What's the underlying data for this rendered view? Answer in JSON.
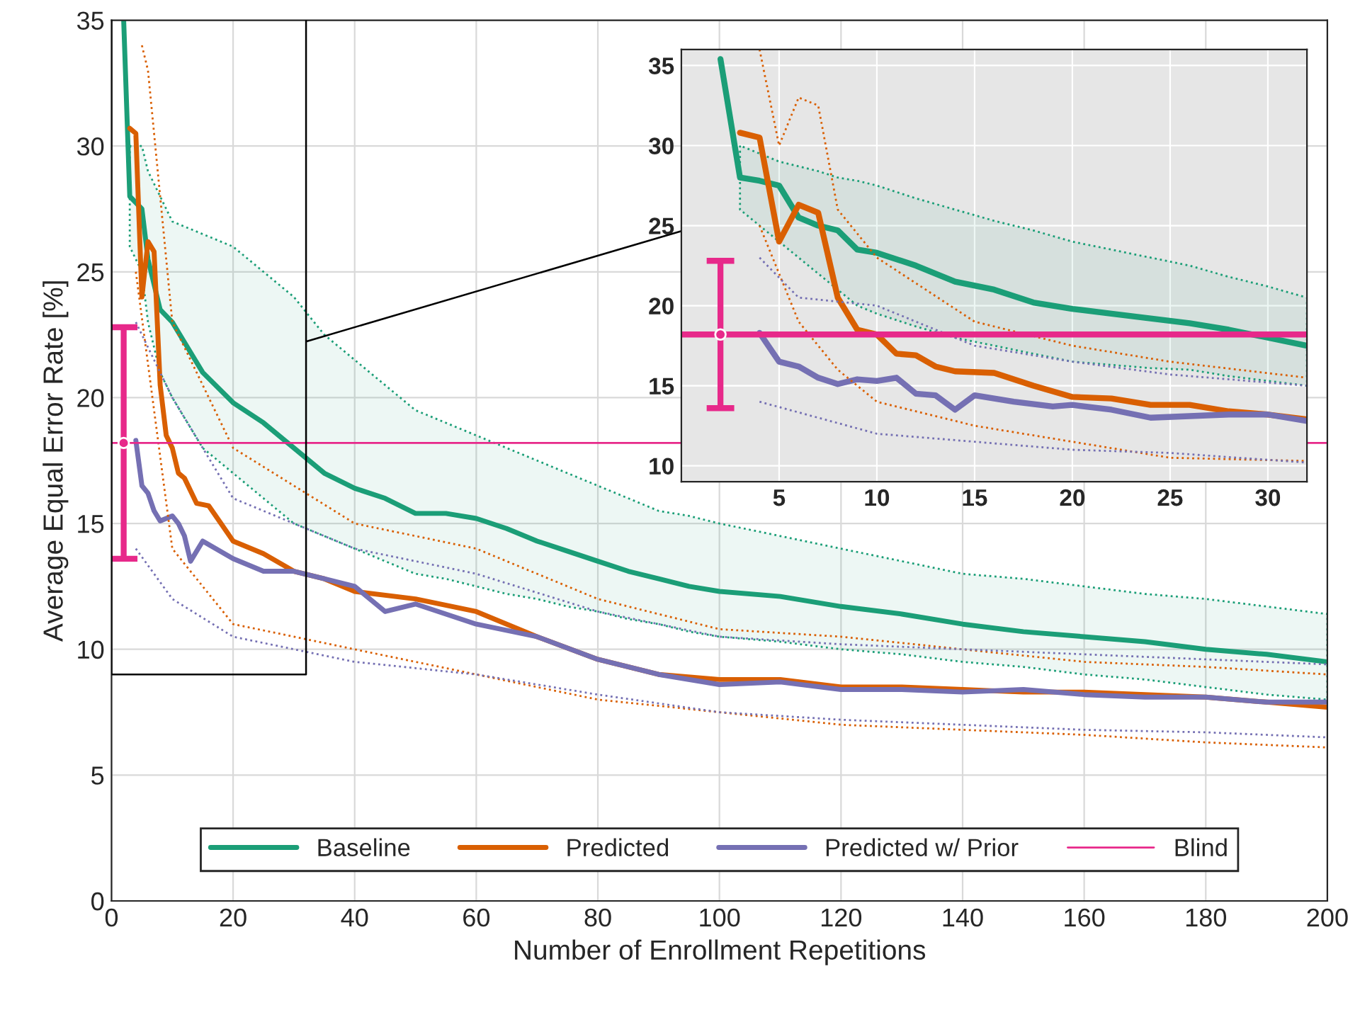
{
  "chart_data": [
    {
      "type": "line",
      "xlabel": "Number of Enrollment Repetitions",
      "ylabel": "Average Equal Error Rate [%]",
      "xlim": [
        0,
        200
      ],
      "ylim": [
        0,
        35
      ],
      "xticks": [
        0,
        20,
        40,
        60,
        80,
        100,
        120,
        140,
        160,
        180,
        200
      ],
      "yticks": [
        0,
        5,
        10,
        15,
        20,
        25,
        30,
        35
      ],
      "grid": true,
      "legend": "bottom",
      "series": [
        {
          "name": "Baseline",
          "color": "#1b9e77",
          "x": [
            2,
            3,
            5,
            6,
            8,
            10,
            15,
            20,
            25,
            30,
            35,
            40,
            45,
            50,
            55,
            60,
            65,
            70,
            75,
            80,
            85,
            90,
            95,
            100,
            110,
            120,
            130,
            140,
            150,
            160,
            170,
            180,
            190,
            200
          ],
          "values": [
            35,
            28,
            27.5,
            25.5,
            23.5,
            23,
            21,
            19.8,
            19,
            18,
            17,
            16.4,
            16,
            15.4,
            15.4,
            15.2,
            14.8,
            14.3,
            13.9,
            13.5,
            13.1,
            12.8,
            12.5,
            12.3,
            12.1,
            11.7,
            11.4,
            11,
            10.7,
            10.5,
            10.3,
            10,
            9.8,
            9.5
          ],
          "lower": [
            null,
            26,
            25,
            23,
            21,
            20,
            18,
            17,
            16,
            15,
            14.5,
            14,
            13.5,
            13,
            12.8,
            12.5,
            12.2,
            12,
            11.7,
            11.5,
            11.2,
            11,
            10.7,
            10.5,
            10.3,
            10,
            9.8,
            9.5,
            9.3,
            9,
            8.8,
            8.5,
            8.2,
            8
          ],
          "upper": [
            null,
            30,
            30,
            29,
            28,
            27,
            26.5,
            26,
            25,
            24,
            22.5,
            21.5,
            20.5,
            19.5,
            19,
            18.5,
            18,
            17.5,
            17,
            16.5,
            16,
            15.5,
            15.3,
            15,
            14.5,
            14,
            13.5,
            13,
            12.8,
            12.5,
            12.2,
            12,
            11.7,
            11.4
          ]
        },
        {
          "name": "Predicted",
          "color": "#d95f02",
          "x": [
            3,
            4,
            5,
            6,
            7,
            8,
            9,
            10,
            11,
            12,
            14,
            16,
            18,
            20,
            25,
            30,
            35,
            40,
            50,
            60,
            70,
            80,
            90,
            100,
            110,
            120,
            130,
            140,
            150,
            160,
            170,
            180,
            190,
            200
          ],
          "values": [
            30.7,
            30.5,
            24,
            26.2,
            25.8,
            20.5,
            18.5,
            18,
            17,
            16.8,
            15.8,
            15.7,
            15,
            14.3,
            13.8,
            13.1,
            12.8,
            12.3,
            12,
            11.5,
            10.5,
            9.6,
            9,
            8.8,
            8.8,
            8.5,
            8.5,
            8.4,
            8.3,
            8.3,
            8.2,
            8.1,
            7.9,
            7.7
          ]
        },
        {
          "name": "Predicted w/ Prior",
          "color": "#7570b3",
          "x": [
            4,
            5,
            6,
            7,
            8,
            10,
            11,
            12,
            13,
            15,
            20,
            25,
            30,
            35,
            40,
            45,
            50,
            60,
            70,
            80,
            90,
            100,
            110,
            120,
            130,
            140,
            150,
            160,
            170,
            180,
            190,
            200
          ],
          "values": [
            18.3,
            16.5,
            16.2,
            15.5,
            15.1,
            15.3,
            15,
            14.5,
            13.5,
            14.3,
            13.6,
            13.1,
            13.1,
            12.8,
            12.5,
            11.5,
            11.8,
            11,
            10.5,
            9.6,
            9,
            8.6,
            8.7,
            8.4,
            8.4,
            8.3,
            8.4,
            8.2,
            8.1,
            8.1,
            7.9,
            7.9
          ]
        },
        {
          "color": "#d95f02",
          "line_style": "dotted",
          "x": [
            5,
            6,
            10,
            20,
            40,
            60,
            80,
            100,
            120,
            140,
            160,
            180,
            200
          ],
          "values": [
            34,
            33,
            23,
            18,
            15,
            14,
            12,
            10.8,
            10.5,
            10,
            9.5,
            9.3,
            9
          ]
        },
        {
          "color": "#d95f02",
          "line_style": "dotted",
          "x": [
            4,
            10,
            20,
            40,
            60,
            80,
            100,
            120,
            140,
            160,
            180,
            200
          ],
          "values": [
            25,
            14,
            11,
            10,
            9,
            8,
            7.5,
            7,
            6.8,
            6.6,
            6.3,
            6.1
          ]
        },
        {
          "color": "#7570b3",
          "line_style": "dotted",
          "x": [
            4,
            10,
            20,
            40,
            60,
            80,
            100,
            120,
            140,
            160,
            180,
            200
          ],
          "values": [
            23,
            20,
            16,
            14,
            13,
            11.5,
            10.5,
            10.2,
            10,
            9.8,
            9.6,
            9.4
          ]
        },
        {
          "color": "#7570b3",
          "line_style": "dotted",
          "x": [
            4,
            10,
            20,
            40,
            60,
            80,
            100,
            120,
            140,
            160,
            180,
            200
          ],
          "values": [
            14,
            12,
            10.5,
            9.5,
            9,
            8.2,
            7.5,
            7.2,
            7,
            6.8,
            6.7,
            6.5
          ]
        },
        {
          "type": "scatter",
          "marker": "circle",
          "color": "#e7298a",
          "x": [
            2
          ],
          "values": [
            18.2
          ],
          "errors": [
            [
              13.6,
              22.8
            ]
          ]
        }
      ],
      "ref_lines": [
        {
          "axis": "y",
          "value": 18.2,
          "label": "Blind",
          "color": "#e7298a"
        }
      ]
    },
    {
      "type": "line",
      "xlim": [
        0,
        32
      ],
      "ylim": [
        9,
        36
      ],
      "xticks": [
        5,
        10,
        15,
        20,
        25,
        30
      ],
      "yticks": [
        10,
        15,
        20,
        25,
        30,
        35
      ],
      "grid": true,
      "series": [
        {
          "color": "#1b9e77",
          "x": [
            2,
            3,
            4,
            5,
            6,
            7,
            8,
            9,
            10,
            12,
            14,
            16,
            18,
            20,
            22,
            24,
            26,
            28,
            30,
            32
          ],
          "values": [
            35.4,
            28,
            27.8,
            27.5,
            25.5,
            25,
            24.7,
            23.5,
            23.3,
            22.5,
            21.5,
            21,
            20.2,
            19.8,
            19.5,
            19.2,
            18.9,
            18.5,
            18,
            17.5
          ],
          "lower": [
            null,
            26,
            25,
            24,
            23,
            22,
            21,
            20,
            19.5,
            18.7,
            18,
            17.5,
            17,
            16.5,
            16.3,
            16.1,
            16,
            15.6,
            15.3,
            15
          ],
          "upper": [
            null,
            30,
            29.5,
            29,
            28.7,
            28.4,
            28,
            27.8,
            27.5,
            26.7,
            26,
            25.3,
            24.7,
            24,
            23.5,
            23,
            22.5,
            21.8,
            21.2,
            20.5
          ]
        },
        {
          "color": "#d95f02",
          "x": [
            3,
            4,
            5,
            6,
            7,
            8,
            9,
            10,
            11,
            12,
            13,
            14,
            16,
            18,
            20,
            22,
            24,
            26,
            28,
            30,
            32
          ],
          "values": [
            30.8,
            30.5,
            24,
            26.3,
            25.8,
            20.5,
            18.5,
            18.2,
            17,
            16.9,
            16.2,
            15.9,
            15.8,
            15,
            14.3,
            14.2,
            13.8,
            13.8,
            13.4,
            13.2,
            12.9
          ]
        },
        {
          "color": "#7570b3",
          "x": [
            4,
            5,
            6,
            7,
            8,
            9,
            10,
            11,
            12,
            13,
            14,
            15,
            17,
            19,
            20,
            22,
            24,
            26,
            28,
            30,
            32
          ],
          "values": [
            18.3,
            16.5,
            16.2,
            15.5,
            15.1,
            15.4,
            15.3,
            15.5,
            14.5,
            14.4,
            13.5,
            14.4,
            14,
            13.7,
            13.8,
            13.5,
            13,
            13.1,
            13.2,
            13.2,
            12.8
          ]
        },
        {
          "color": "#d95f02",
          "line_style": "dotted",
          "x": [
            4,
            5,
            6,
            7,
            8,
            10,
            15,
            20,
            25,
            32
          ],
          "values": [
            36,
            30,
            33,
            32.5,
            26,
            23,
            19,
            17.5,
            16.5,
            15.5
          ]
        },
        {
          "color": "#d95f02",
          "line_style": "dotted",
          "x": [
            4,
            6,
            8,
            10,
            15,
            20,
            25,
            32
          ],
          "values": [
            25,
            19,
            16,
            14,
            12.5,
            11.5,
            10.5,
            10.3
          ]
        },
        {
          "color": "#7570b3",
          "line_style": "dotted",
          "x": [
            4,
            6,
            10,
            15,
            20,
            25,
            32
          ],
          "values": [
            23,
            20.5,
            20,
            17.5,
            16.5,
            15.7,
            15
          ]
        },
        {
          "color": "#7570b3",
          "line_style": "dotted",
          "x": [
            4,
            10,
            15,
            20,
            25,
            32
          ],
          "values": [
            14,
            12,
            11.5,
            11,
            10.8,
            10.2
          ]
        },
        {
          "type": "scatter",
          "marker": "circle",
          "color": "#e7298a",
          "x": [
            2
          ],
          "values": [
            18.2
          ],
          "errors": [
            [
              13.6,
              22.8
            ]
          ]
        }
      ],
      "ref_lines": [
        {
          "axis": "y",
          "value": 18.2,
          "color": "#e7298a"
        }
      ]
    }
  ]
}
